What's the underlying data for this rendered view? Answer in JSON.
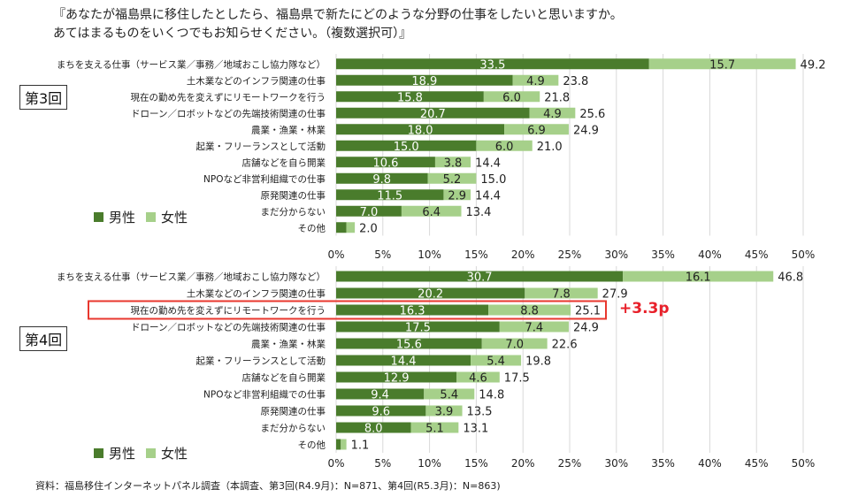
{
  "title_line1": "『あなたが福島県に移住したとしたら、福島県で新たにどのような分野の仕事をしたいと思いますか。",
  "title_line2": "あてはまるものをいくつでもお知らせください。（複数選択可）』",
  "source": "資料：福島移住インターネットパネル調査（本調査、第3回(R4.9月)：N=871、第4回(R5.3月)：N=863)",
  "legend": {
    "male": "男性",
    "female": "女性"
  },
  "colors": {
    "male": "#4a7c2c",
    "female": "#a6d08a",
    "highlight": "#e8372e",
    "delta": "#e8202a"
  },
  "highlight_delta": "+3.3p",
  "chart_data": [
    {
      "type": "bar",
      "stacked": true,
      "orientation": "horizontal",
      "panel_label": "第3回",
      "categories": [
        "まちを支える仕事（サービス業／事務／地域おこし協力隊など）",
        "土木業などのインフラ関連の仕事",
        "現在の勤め先を変えずにリモートワークを行う",
        "ドローン／ロボットなどの先端技術関連の仕事",
        "農業・漁業・林業",
        "起業・フリーランスとして活動",
        "店舗などを自ら開業",
        "NPOなど非営利組織での仕事",
        "原発関連の仕事",
        "まだ分からない",
        "その他"
      ],
      "series": [
        {
          "name": "男性",
          "values": [
            33.5,
            18.9,
            15.8,
            20.7,
            18.0,
            15.0,
            10.6,
            9.8,
            11.5,
            7.0,
            1.1
          ],
          "labels": [
            "33.5",
            "18.9",
            "15.8",
            "20.7",
            "18.0",
            "15.0",
            "10.6",
            "9.8",
            "11.5",
            "7.0",
            ""
          ]
        },
        {
          "name": "女性",
          "values": [
            15.7,
            4.9,
            6.0,
            4.9,
            6.9,
            6.0,
            3.8,
            5.2,
            2.9,
            6.4,
            0.9
          ],
          "labels": [
            "15.7",
            "4.9",
            "6.0",
            "4.9",
            "6.9",
            "6.0",
            "3.8",
            "5.2",
            "2.9",
            "6.4",
            ""
          ]
        }
      ],
      "totals": [
        "49.2",
        "23.8",
        "21.8",
        "25.6",
        "24.9",
        "21.0",
        "14.4",
        "15.0",
        "14.4",
        "13.4",
        "2.0"
      ],
      "xlim": [
        0,
        50
      ],
      "xticks": [
        "0%",
        "5%",
        "10%",
        "15%",
        "20%",
        "25%",
        "30%",
        "35%",
        "40%",
        "45%",
        "50%"
      ],
      "highlight_index": -1
    },
    {
      "type": "bar",
      "stacked": true,
      "orientation": "horizontal",
      "panel_label": "第4回",
      "categories": [
        "まちを支える仕事（サービス業／事務／地域おこし協力隊など）",
        "土木業などのインフラ関連の仕事",
        "現在の勤め先を変えずにリモートワークを行う",
        "ドローン／ロボットなどの先端技術関連の仕事",
        "農業・漁業・林業",
        "起業・フリーランスとして活動",
        "店舗などを自ら開業",
        "NPOなど非営利組織での仕事",
        "原発関連の仕事",
        "まだ分からない",
        "その他"
      ],
      "series": [
        {
          "name": "男性",
          "values": [
            30.7,
            20.2,
            16.3,
            17.5,
            15.6,
            14.4,
            12.9,
            9.4,
            9.6,
            8.0,
            0.5
          ],
          "labels": [
            "30.7",
            "20.2",
            "16.3",
            "17.5",
            "15.6",
            "14.4",
            "12.9",
            "9.4",
            "9.6",
            "8.0",
            ""
          ]
        },
        {
          "name": "女性",
          "values": [
            16.1,
            7.8,
            8.8,
            7.4,
            7.0,
            5.4,
            4.6,
            5.4,
            3.9,
            5.1,
            0.6
          ],
          "labels": [
            "16.1",
            "7.8",
            "8.8",
            "7.4",
            "7.0",
            "5.4",
            "4.6",
            "5.4",
            "3.9",
            "5.1",
            ""
          ]
        }
      ],
      "totals": [
        "46.8",
        "27.9",
        "25.1",
        "24.9",
        "22.6",
        "19.8",
        "17.5",
        "14.8",
        "13.5",
        "13.1",
        "1.1"
      ],
      "xlim": [
        0,
        50
      ],
      "xticks": [
        "0%",
        "5%",
        "10%",
        "15%",
        "20%",
        "25%",
        "30%",
        "35%",
        "40%",
        "45%",
        "50%"
      ],
      "highlight_index": 2
    }
  ]
}
